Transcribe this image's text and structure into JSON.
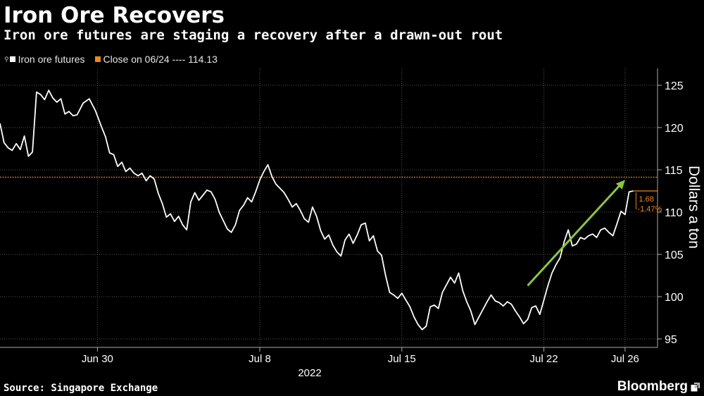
{
  "header": {
    "title": "Iron Ore Recovers",
    "subtitle": "Iron ore futures are staging a recovery after a drawn-out rout"
  },
  "legend": {
    "series_label": "Iron ore futures",
    "series_color": "#ffffff",
    "ref_label": "Close on 06/24 ---- 114.13",
    "ref_color": "#f0871e",
    "hint_icon": "pin-icon"
  },
  "footer": {
    "source": "Source: Singapore Exchange",
    "brand": "Bloomberg",
    "brand_icon": "external-link-icon"
  },
  "chart_data": {
    "type": "line",
    "title": "Iron Ore Recovers",
    "xlabel": "2022",
    "ylabel": "Dollars a ton",
    "ylim": [
      94,
      127
    ],
    "yticks": [
      95,
      100,
      105,
      110,
      115,
      120,
      125
    ],
    "xticks": [
      {
        "t": 3.0,
        "label": "Jun 30"
      },
      {
        "t": 11.0,
        "label": "Jul 8"
      },
      {
        "t": 18.0,
        "label": "Jul 15"
      },
      {
        "t": 25.0,
        "label": "Jul 22"
      },
      {
        "t": 29.0,
        "label": "Jul 26"
      }
    ],
    "xlim": [
      -1.8,
      30.6
    ],
    "series": [
      {
        "name": "Iron ore futures",
        "color": "#ffffff",
        "points": [
          [
            -1.8,
            120.5
          ],
          [
            -1.6,
            118.2
          ],
          [
            -1.4,
            117.6
          ],
          [
            -1.2,
            117.3
          ],
          [
            -1.0,
            118.1
          ],
          [
            -0.8,
            117.4
          ],
          [
            -0.6,
            119.0
          ],
          [
            -0.4,
            116.6
          ],
          [
            -0.2,
            117.1
          ],
          [
            0.0,
            124.2
          ],
          [
            0.2,
            123.9
          ],
          [
            0.4,
            123.3
          ],
          [
            0.6,
            124.4
          ],
          [
            0.8,
            123.5
          ],
          [
            1.0,
            123.0
          ],
          [
            1.2,
            123.4
          ],
          [
            1.4,
            121.6
          ],
          [
            1.6,
            121.9
          ],
          [
            1.8,
            121.4
          ],
          [
            2.0,
            121.5
          ],
          [
            2.3,
            122.9
          ],
          [
            2.6,
            123.4
          ],
          [
            2.9,
            122.0
          ],
          [
            3.2,
            120.1
          ],
          [
            3.4,
            118.9
          ],
          [
            3.6,
            117.0
          ],
          [
            3.8,
            116.8
          ],
          [
            4.0,
            115.4
          ],
          [
            4.2,
            115.9
          ],
          [
            4.4,
            114.8
          ],
          [
            4.6,
            115.2
          ],
          [
            4.8,
            114.6
          ],
          [
            5.0,
            114.3
          ],
          [
            5.2,
            114.6
          ],
          [
            5.4,
            113.7
          ],
          [
            5.6,
            114.3
          ],
          [
            5.8,
            113.9
          ],
          [
            6.0,
            112.2
          ],
          [
            6.2,
            111.0
          ],
          [
            6.4,
            109.4
          ],
          [
            6.6,
            109.8
          ],
          [
            6.8,
            108.9
          ],
          [
            7.0,
            109.5
          ],
          [
            7.2,
            108.5
          ],
          [
            7.4,
            107.9
          ],
          [
            7.6,
            111.2
          ],
          [
            7.8,
            112.3
          ],
          [
            8.0,
            111.4
          ],
          [
            8.2,
            112.0
          ],
          [
            8.4,
            112.6
          ],
          [
            8.6,
            112.4
          ],
          [
            8.8,
            111.5
          ],
          [
            9.0,
            110.0
          ],
          [
            9.2,
            109.0
          ],
          [
            9.4,
            108.0
          ],
          [
            9.6,
            107.6
          ],
          [
            9.8,
            108.5
          ],
          [
            10.0,
            110.2
          ],
          [
            10.2,
            110.8
          ],
          [
            10.4,
            111.7
          ],
          [
            10.6,
            111.2
          ],
          [
            10.8,
            112.4
          ],
          [
            11.0,
            113.8
          ],
          [
            11.2,
            114.8
          ],
          [
            11.4,
            115.6
          ],
          [
            11.6,
            114.2
          ],
          [
            11.8,
            113.3
          ],
          [
            12.0,
            112.8
          ],
          [
            12.2,
            112.3
          ],
          [
            12.4,
            111.5
          ],
          [
            12.6,
            110.6
          ],
          [
            12.8,
            111.0
          ],
          [
            13.0,
            110.2
          ],
          [
            13.2,
            109.2
          ],
          [
            13.4,
            108.8
          ],
          [
            13.6,
            110.6
          ],
          [
            13.8,
            109.5
          ],
          [
            14.0,
            107.8
          ],
          [
            14.2,
            106.8
          ],
          [
            14.4,
            107.3
          ],
          [
            14.6,
            106.1
          ],
          [
            14.8,
            105.3
          ],
          [
            15.0,
            104.8
          ],
          [
            15.2,
            106.7
          ],
          [
            15.4,
            107.4
          ],
          [
            15.6,
            106.3
          ],
          [
            15.8,
            107.3
          ],
          [
            16.0,
            108.5
          ],
          [
            16.2,
            108.7
          ],
          [
            16.4,
            106.6
          ],
          [
            16.6,
            107.2
          ],
          [
            16.8,
            105.4
          ],
          [
            17.0,
            104.9
          ],
          [
            17.2,
            102.5
          ],
          [
            17.4,
            100.5
          ],
          [
            17.6,
            100.2
          ],
          [
            17.8,
            99.8
          ],
          [
            18.0,
            100.4
          ],
          [
            18.2,
            99.6
          ],
          [
            18.4,
            98.8
          ],
          [
            18.6,
            97.6
          ],
          [
            18.8,
            96.7
          ],
          [
            19.0,
            96.1
          ],
          [
            19.2,
            96.5
          ],
          [
            19.4,
            98.8
          ],
          [
            19.6,
            99.0
          ],
          [
            19.8,
            98.6
          ],
          [
            20.0,
            100.5
          ],
          [
            20.2,
            101.4
          ],
          [
            20.4,
            102.3
          ],
          [
            20.6,
            101.6
          ],
          [
            20.8,
            102.8
          ],
          [
            21.0,
            100.7
          ],
          [
            21.2,
            99.4
          ],
          [
            21.4,
            98.3
          ],
          [
            21.6,
            96.7
          ],
          [
            21.8,
            97.6
          ],
          [
            22.0,
            98.5
          ],
          [
            22.2,
            99.4
          ],
          [
            22.4,
            100.2
          ],
          [
            22.6,
            99.5
          ],
          [
            22.8,
            99.3
          ],
          [
            23.0,
            98.9
          ],
          [
            23.2,
            99.4
          ],
          [
            23.4,
            99.1
          ],
          [
            23.6,
            98.3
          ],
          [
            23.8,
            97.6
          ],
          [
            24.0,
            96.8
          ],
          [
            24.2,
            97.3
          ],
          [
            24.4,
            98.7
          ],
          [
            24.6,
            98.9
          ],
          [
            24.8,
            97.9
          ],
          [
            25.0,
            99.6
          ],
          [
            25.2,
            101.3
          ],
          [
            25.4,
            102.8
          ],
          [
            25.6,
            103.8
          ],
          [
            25.8,
            104.6
          ],
          [
            26.0,
            106.5
          ],
          [
            26.2,
            107.9
          ],
          [
            26.4,
            106.0
          ],
          [
            26.6,
            106.2
          ],
          [
            26.8,
            107.0
          ],
          [
            27.0,
            106.8
          ],
          [
            27.2,
            107.2
          ],
          [
            27.4,
            107.4
          ],
          [
            27.6,
            107.0
          ],
          [
            27.8,
            107.9
          ],
          [
            28.0,
            108.1
          ],
          [
            28.2,
            107.6
          ],
          [
            28.4,
            107.2
          ],
          [
            28.6,
            108.6
          ],
          [
            28.8,
            110.1
          ],
          [
            29.0,
            109.7
          ],
          [
            29.2,
            112.4
          ],
          [
            29.4,
            112.5
          ]
        ]
      }
    ],
    "reference_line": {
      "label": "Close on 06/24",
      "value": 114.13,
      "color": "#f0871e"
    },
    "annotations": {
      "last_value": 112.5,
      "change_abs": "1.68",
      "change_pct": "-1.47%",
      "trend_arrow": {
        "from": [
          24.2,
          101.3
        ],
        "to": [
          29.0,
          113.8
        ],
        "color": "#8dc63f"
      }
    }
  }
}
